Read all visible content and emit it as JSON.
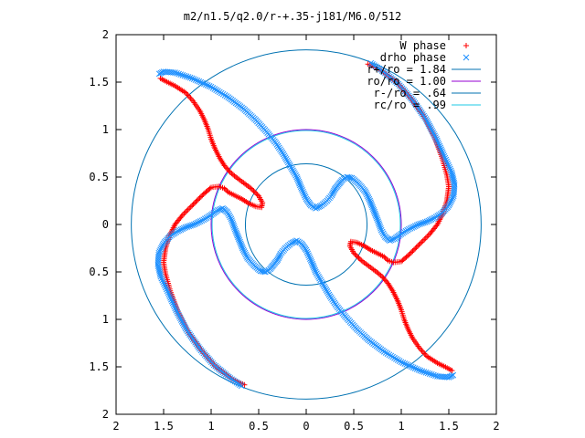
{
  "chart_data": {
    "type": "scatter",
    "title": "m2/n1.5/q2.0/r-+.35-j181/M6.0/512",
    "xlim": [
      -2,
      2
    ],
    "ylim": [
      -2,
      2
    ],
    "x_ticks": [
      "2",
      "1.5",
      "1",
      "0.5",
      "0",
      "0.5",
      "1",
      "1.5",
      "2"
    ],
    "y_ticks": [
      "2",
      "1.5",
      "1",
      "0.5",
      "0",
      "0.5",
      "1",
      "1.5",
      "2"
    ],
    "tick_values": [
      -2,
      -1.5,
      -1,
      -0.5,
      0,
      0.5,
      1,
      1.5,
      2
    ],
    "grid": false,
    "legend_position": "top-right",
    "point_series": [
      {
        "name": "W phase",
        "marker": "+",
        "color": "#ff0000",
        "arms": [
          [
            [
              0.65,
              1.69
            ],
            [
              0.78,
              1.63
            ],
            [
              0.95,
              1.5
            ],
            [
              1.1,
              1.33
            ],
            [
              1.24,
              1.14
            ],
            [
              1.35,
              0.92
            ],
            [
              1.43,
              0.7
            ],
            [
              1.48,
              0.52
            ],
            [
              1.5,
              0.4
            ],
            [
              1.48,
              0.25
            ],
            [
              1.44,
              0.12
            ],
            [
              1.38,
              0.0
            ],
            [
              1.3,
              -0.1
            ],
            [
              1.2,
              -0.2
            ],
            [
              1.08,
              -0.32
            ],
            [
              1.0,
              -0.39
            ],
            [
              0.92,
              -0.4
            ],
            [
              0.86,
              -0.38
            ],
            [
              0.82,
              -0.34
            ],
            [
              0.68,
              -0.27
            ],
            [
              0.6,
              -0.22
            ],
            [
              0.53,
              -0.19
            ],
            [
              0.47,
              -0.18
            ],
            [
              0.46,
              -0.23
            ],
            [
              0.5,
              -0.3
            ],
            [
              0.58,
              -0.38
            ],
            [
              0.66,
              -0.44
            ],
            [
              0.74,
              -0.5
            ],
            [
              0.8,
              -0.55
            ],
            [
              0.86,
              -0.62
            ],
            [
              0.91,
              -0.7
            ],
            [
              0.96,
              -0.8
            ],
            [
              1.0,
              -0.9
            ],
            [
              1.03,
              -1.0
            ],
            [
              1.07,
              -1.1
            ],
            [
              1.12,
              -1.2
            ],
            [
              1.19,
              -1.3
            ],
            [
              1.27,
              -1.39
            ],
            [
              1.38,
              -1.46
            ],
            [
              1.5,
              -1.52
            ],
            [
              1.55,
              -1.55
            ]
          ]
        ]
      },
      {
        "name": "drho phase",
        "marker": "x",
        "color": "#1e90ff",
        "arms": [
          [
            [
              0.68,
              1.7
            ],
            [
              0.8,
              1.62
            ],
            [
              0.97,
              1.48
            ],
            [
              1.12,
              1.31
            ],
            [
              1.26,
              1.11
            ],
            [
              1.37,
              0.9
            ],
            [
              1.46,
              0.7
            ],
            [
              1.53,
              0.55
            ],
            [
              1.56,
              0.42
            ],
            [
              1.55,
              0.3
            ],
            [
              1.5,
              0.2
            ],
            [
              1.43,
              0.12
            ],
            [
              1.35,
              0.07
            ],
            [
              1.27,
              0.03
            ],
            [
              1.18,
              0.0
            ],
            [
              1.08,
              -0.05
            ],
            [
              1.0,
              -0.1
            ],
            [
              0.93,
              -0.15
            ],
            [
              0.88,
              -0.17
            ],
            [
              0.83,
              -0.13
            ],
            [
              0.79,
              -0.06
            ],
            [
              0.75,
              0.05
            ],
            [
              0.71,
              0.15
            ],
            [
              0.67,
              0.25
            ],
            [
              0.62,
              0.35
            ],
            [
              0.55,
              0.43
            ],
            [
              0.48,
              0.49
            ],
            [
              0.43,
              0.5
            ],
            [
              0.38,
              0.47
            ],
            [
              0.34,
              0.42
            ],
            [
              0.3,
              0.37
            ],
            [
              0.27,
              0.31
            ],
            [
              0.22,
              0.25
            ],
            [
              0.16,
              0.2
            ],
            [
              0.1,
              0.17
            ],
            [
              0.05,
              0.2
            ],
            [
              0.0,
              0.27
            ],
            [
              -0.05,
              0.38
            ],
            [
              -0.1,
              0.5
            ],
            [
              -0.17,
              0.62
            ],
            [
              -0.24,
              0.74
            ],
            [
              -0.32,
              0.86
            ],
            [
              -0.42,
              0.98
            ],
            [
              -0.53,
              1.1
            ],
            [
              -0.66,
              1.22
            ],
            [
              -0.82,
              1.34
            ],
            [
              -1.0,
              1.45
            ],
            [
              -1.2,
              1.54
            ],
            [
              -1.38,
              1.6
            ],
            [
              -1.5,
              1.61
            ],
            [
              -1.56,
              1.58
            ]
          ]
        ]
      }
    ],
    "circle_series": [
      {
        "name": "r+/ro = 1.84",
        "r": 1.84,
        "color": "#0072b2"
      },
      {
        "name": "ro/ro = 1.00",
        "r": 1.0,
        "color": "#9400d3"
      },
      {
        "name": "r-/ro = .64",
        "r": 0.64,
        "color": "#0072b2"
      },
      {
        "name": "rc/ro = .99",
        "r": 0.99,
        "color": "#1ec8e6"
      }
    ]
  }
}
